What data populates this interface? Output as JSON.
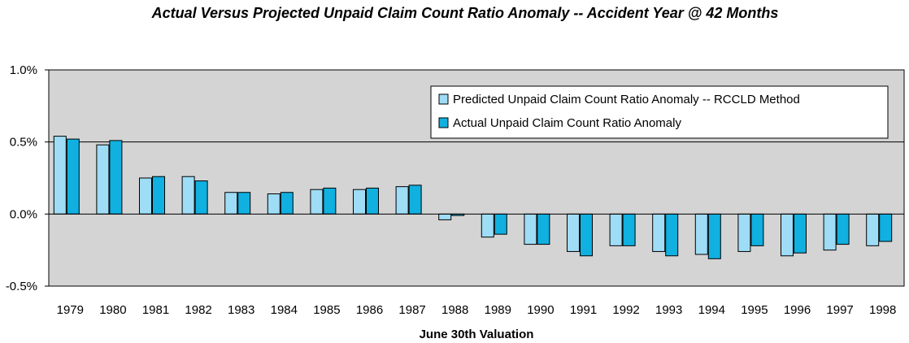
{
  "chart_data": {
    "type": "bar",
    "title": "Actual Versus Projected Unpaid Claim Count Ratio Anomaly -- Accident Year @ 42 Months",
    "xlabel": "June 30th Valuation",
    "ylabel": "",
    "ylim": [
      -0.5,
      1.0
    ],
    "yticks": [
      1.0,
      0.5,
      0.0,
      -0.5
    ],
    "ytick_labels": [
      "1.0%",
      "0.5%",
      "0.0%",
      "-0.5%"
    ],
    "gridlines": "horizontal",
    "legend_position": "top-right",
    "categories": [
      "1979",
      "1980",
      "1981",
      "1982",
      "1983",
      "1984",
      "1985",
      "1986",
      "1987",
      "1988",
      "1989",
      "1990",
      "1991",
      "1992",
      "1993",
      "1994",
      "1995",
      "1996",
      "1997",
      "1998"
    ],
    "series": [
      {
        "name": "Predicted Unpaid Claim Count Ratio Anomaly -- RCCLD Method",
        "color": "#9fdcf5",
        "values": [
          0.54,
          0.48,
          0.25,
          0.26,
          0.15,
          0.14,
          0.17,
          0.17,
          0.19,
          -0.04,
          -0.16,
          -0.21,
          -0.26,
          -0.22,
          -0.26,
          -0.28,
          -0.26,
          -0.29,
          -0.25,
          -0.22
        ]
      },
      {
        "name": "Actual Unpaid Claim Count Ratio Anomaly",
        "color": "#10b0e0",
        "values": [
          0.52,
          0.51,
          0.26,
          0.23,
          0.15,
          0.15,
          0.18,
          0.18,
          0.2,
          -0.01,
          -0.14,
          -0.21,
          -0.29,
          -0.22,
          -0.29,
          -0.31,
          -0.22,
          -0.27,
          -0.21,
          -0.19
        ]
      }
    ]
  }
}
